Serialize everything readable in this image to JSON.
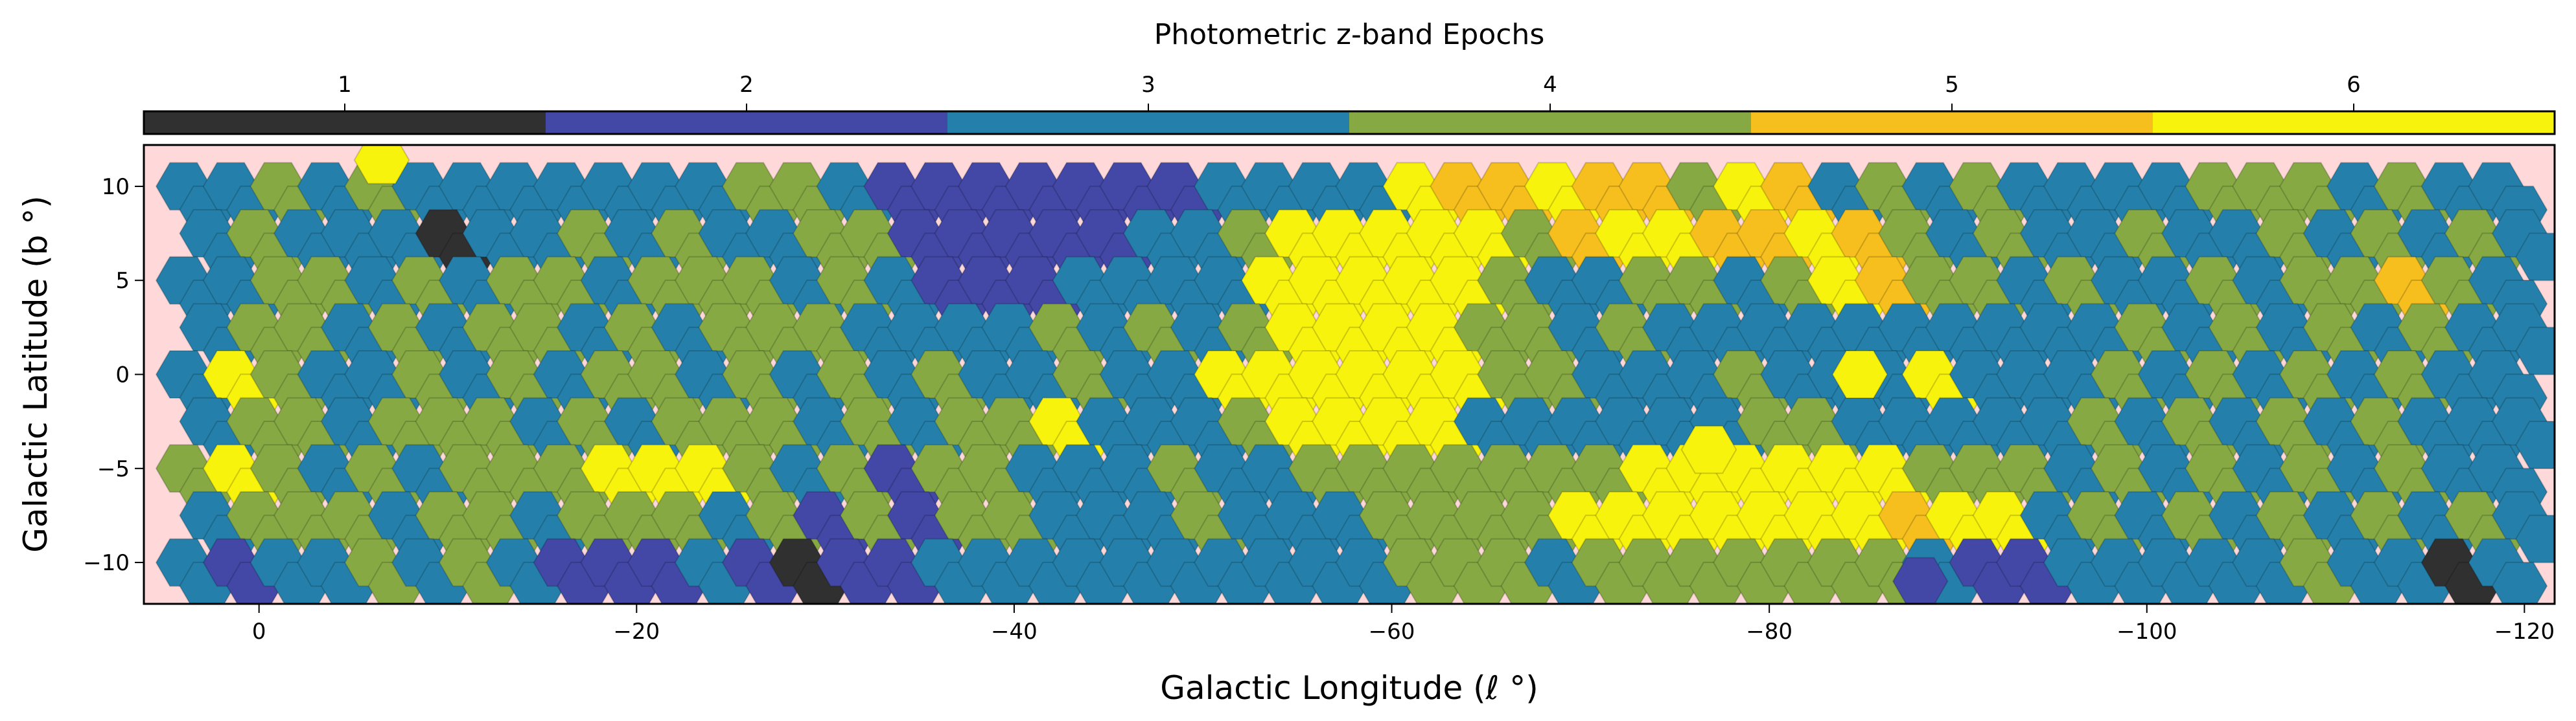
{
  "chart_data": {
    "type": "heatmap",
    "title": "Photometric z-band Epochs",
    "xlabel": "Galactic Longitude (ℓ °)",
    "ylabel": "Galactic Latitude (b °)",
    "xlim": [
      6.1,
      -121.6
    ],
    "ylim": [
      -12.2,
      12.2
    ],
    "xticks": [
      0,
      -20,
      -40,
      -60,
      -80,
      -100,
      -120
    ],
    "xtick_labels": [
      "0",
      "−20",
      "−40",
      "−60",
      "−80",
      "−100",
      "−120"
    ],
    "yticks": [
      10,
      5,
      0,
      -5,
      -10
    ],
    "ytick_labels": [
      "10",
      "5",
      "0",
      "−5",
      "−10"
    ],
    "background_color": "#ffd9d9",
    "colorbar": {
      "label": "Photometric z-band Epochs",
      "placement": "top",
      "ticks": [
        "1",
        "2",
        "3",
        "4",
        "5",
        "6"
      ],
      "colors": [
        "#303030",
        "#4347a6",
        "#2480ab",
        "#86a944",
        "#f6bf1e",
        "#f8f30c"
      ]
    },
    "tile_grid": {
      "l_start": 4,
      "l_step": -2.5,
      "b_rows": [
        10,
        7.5,
        5,
        2.5,
        0,
        -2.5,
        -5,
        -7.5,
        -10
      ],
      "epochs_rows": [
        "33434333333344322222223333655655465343433334443433",
        "34333133434334422222334666664566556543433433434343",
        "33443434434443432223333666664334434654434334344543",
        "34434344343444333343434666644343333333333434343433",
        "36433434344343434334336666664433343336333434343433",
        "34434443434443434463334666633333344333334343434333",
        "46434344466643424433343344444446666664443434343433",
        "34443443444342424433343334444666666656634343434343",
        "32334343222321223333333333444344444443223333343313"
      ],
      "extra_tiles": [
        {
          "l": -6.5,
          "b": 11.4,
          "epochs": 6
        },
        {
          "l": -88,
          "b": -11.0,
          "epochs": 2
        },
        {
          "l": -84.8,
          "b": 0.0,
          "epochs": 6
        },
        {
          "l": -76.8,
          "b": -4.0,
          "epochs": 6
        }
      ]
    }
  }
}
